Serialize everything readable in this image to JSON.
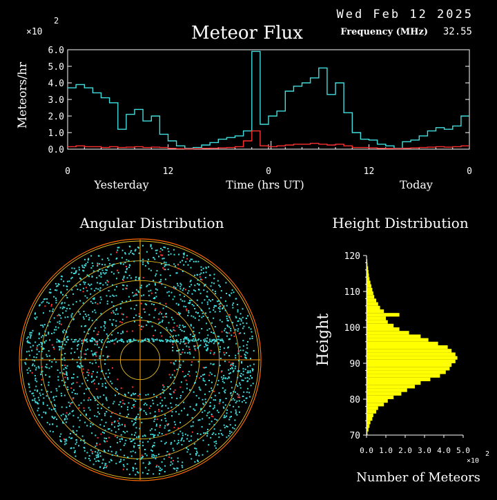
{
  "header": {
    "date": "Wed Feb 12 2025",
    "frequency_label": "Frequency (MHz)",
    "frequency_value": "32.55"
  },
  "chart_data": [
    {
      "type": "line",
      "title": "Meteor Flux",
      "ylabel": "Meteors/hr",
      "xlabel": "Time (hrs UT)",
      "y_multiplier": "×10",
      "y_multiplier_exp": "2",
      "ylim": [
        0,
        6
      ],
      "yticks": [
        "0.0",
        "1.0",
        "2.0",
        "3.0",
        "4.0",
        "5.0",
        "6.0"
      ],
      "xticks": [
        "0",
        "12",
        "0",
        "12",
        "0"
      ],
      "day_labels": [
        "Yesterday",
        "Today"
      ],
      "xlim": [
        0,
        48
      ],
      "series": [
        {
          "color": "#40e0e0",
          "values": [
            3.7,
            3.9,
            3.7,
            3.4,
            3.1,
            2.8,
            1.2,
            2.1,
            2.4,
            1.7,
            2.0,
            0.9,
            0.5,
            0.2,
            0.05,
            0.1,
            0.25,
            0.4,
            0.6,
            0.7,
            0.8,
            1.1,
            5.9,
            1.5,
            2.0,
            2.3,
            3.5,
            3.8,
            4.0,
            4.3,
            4.9,
            3.3,
            4.0,
            2.2,
            1.0,
            0.6,
            0.55,
            0.3,
            0.2,
            0.05,
            0.45,
            0.55,
            0.8,
            1.1,
            1.3,
            1.2,
            1.4,
            2.0
          ]
        },
        {
          "color": "#ff3030",
          "values": [
            0.15,
            0.2,
            0.15,
            0.15,
            0.1,
            0.15,
            0.1,
            0.12,
            0.15,
            0.1,
            0.12,
            0.1,
            0.05,
            0.03,
            0.02,
            0.03,
            0.05,
            0.06,
            0.08,
            0.1,
            0.15,
            0.5,
            1.1,
            0.2,
            0.15,
            0.2,
            0.25,
            0.3,
            0.3,
            0.35,
            0.3,
            0.25,
            0.3,
            0.2,
            0.1,
            0.1,
            0.08,
            0.05,
            0.04,
            0.03,
            0.06,
            0.08,
            0.1,
            0.12,
            0.15,
            0.12,
            0.15,
            0.2
          ]
        }
      ]
    },
    {
      "type": "scatter",
      "title": "Angular Distribution",
      "rings": 6
    },
    {
      "type": "bar",
      "title": "Height Distribution",
      "ylabel": "Height",
      "xlabel": "Number of Meteors",
      "x_multiplier": "×10",
      "x_multiplier_exp": "2",
      "xlim": [
        0,
        5
      ],
      "ylim": [
        70,
        120
      ],
      "xticks": [
        "0.0",
        "1.0",
        "2.0",
        "3.0",
        "4.0",
        "5.0"
      ],
      "yticks": [
        "70",
        "80",
        "90",
        "100",
        "110",
        "120"
      ],
      "color": "#ffff00",
      "heights": [
        70,
        71,
        72,
        73,
        74,
        75,
        76,
        77,
        78,
        79,
        80,
        81,
        82,
        83,
        84,
        85,
        86,
        87,
        88,
        89,
        90,
        91,
        92,
        93,
        94,
        95,
        96,
        97,
        98,
        99,
        100,
        101,
        102,
        103,
        104,
        105,
        106,
        107,
        108,
        109,
        110,
        111,
        112,
        113,
        114,
        115,
        116,
        117,
        118,
        119
      ],
      "counts": [
        0.05,
        0.1,
        0.15,
        0.2,
        0.3,
        0.35,
        0.5,
        0.6,
        0.9,
        1.1,
        1.4,
        1.8,
        2.1,
        2.5,
        2.8,
        3.3,
        3.8,
        4.1,
        4.3,
        4.4,
        4.6,
        4.7,
        4.6,
        4.4,
        4.2,
        3.7,
        3.2,
        2.8,
        2.2,
        1.7,
        1.4,
        1.1,
        1.0,
        1.7,
        0.9,
        0.7,
        0.6,
        0.5,
        0.4,
        0.35,
        0.3,
        0.25,
        0.2,
        0.15,
        0.12,
        0.1,
        0.08,
        0.05,
        0.04,
        0.02
      ]
    }
  ]
}
